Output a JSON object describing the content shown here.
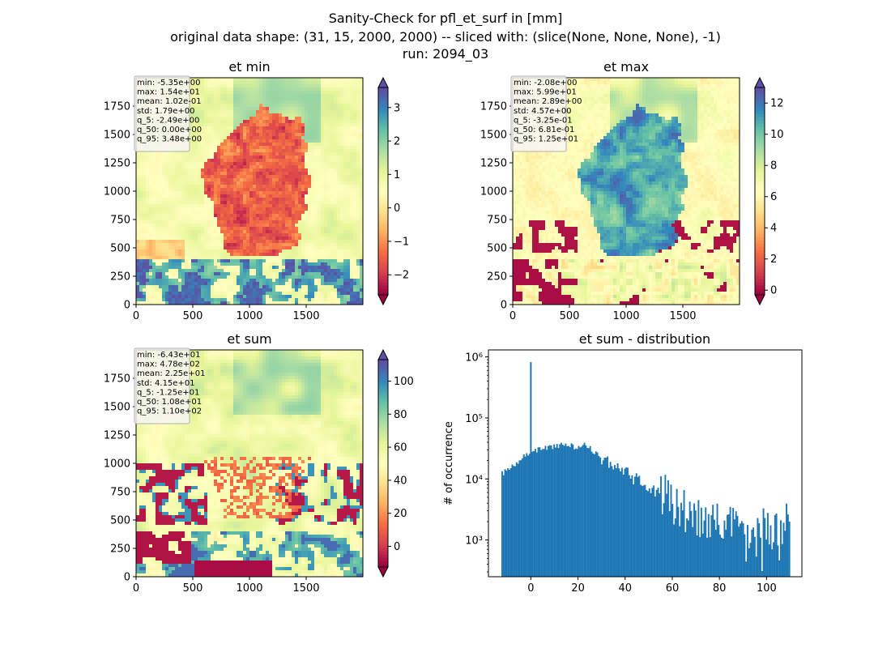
{
  "figure": {
    "title_lines": [
      "Sanity-Check for pfl_et_surf in [mm]",
      "original data shape: (31, 15, 2000, 2000) -- sliced with: (slice(None, None, None), -1)",
      "run: 2094_03"
    ]
  },
  "colormap": {
    "name": "Spectral",
    "stops": [
      "#9e0142",
      "#d53e4f",
      "#f46d43",
      "#fdae61",
      "#fee08b",
      "#ffffbf",
      "#e6f598",
      "#abdda4",
      "#66c2a5",
      "#3288bd",
      "#5e4fa2"
    ]
  },
  "chart_data": [
    {
      "type": "heatmap",
      "title": "et min",
      "xlim": [
        0,
        2000
      ],
      "ylim": [
        0,
        2000
      ],
      "xticks": [
        "0",
        "500",
        "1000",
        "1500"
      ],
      "yticks": [
        "0",
        "250",
        "500",
        "750",
        "1000",
        "1250",
        "1500",
        "1750"
      ],
      "colorbar": {
        "range": [
          -2.6,
          3.6
        ],
        "ticks": [
          "−2",
          "−1",
          "0",
          "1",
          "2",
          "3"
        ],
        "tick_values": [
          -2,
          -1,
          0,
          1,
          2,
          3
        ],
        "extend": "both"
      },
      "stats": [
        "min: -5.35e+00",
        "max: 1.54e+01",
        "mean: 1.02e-01",
        "std: 1.79e+00",
        "q_5: -2.49e+00",
        "q_50: 0.00e+00",
        "q_95: 3.48e+00"
      ]
    },
    {
      "type": "heatmap",
      "title": "et max",
      "xlim": [
        0,
        2000
      ],
      "ylim": [
        0,
        2000
      ],
      "xticks": [
        "0",
        "500",
        "1000",
        "1500"
      ],
      "yticks": [
        "0",
        "250",
        "500",
        "750",
        "1000",
        "1250",
        "1500",
        "1750"
      ],
      "colorbar": {
        "range": [
          -0.3,
          13
        ],
        "ticks": [
          "0",
          "2",
          "4",
          "6",
          "8",
          "10",
          "12"
        ],
        "tick_values": [
          0,
          2,
          4,
          6,
          8,
          10,
          12
        ],
        "extend": "both"
      },
      "stats": [
        "min: -2.08e+00",
        "max: 5.99e+01",
        "mean: 2.89e+00",
        "std: 4.57e+00",
        "q_5: -3.25e-01",
        "q_50: 6.81e-01",
        "q_95: 1.25e+01"
      ]
    },
    {
      "type": "heatmap",
      "title": "et sum",
      "xlim": [
        0,
        2000
      ],
      "ylim": [
        0,
        2000
      ],
      "xticks": [
        "0",
        "500",
        "1000",
        "1500"
      ],
      "yticks": [
        "0",
        "250",
        "500",
        "750",
        "1000",
        "1250",
        "1500",
        "1750"
      ],
      "colorbar": {
        "range": [
          -12.5,
          113
        ],
        "ticks": [
          "0",
          "20",
          "40",
          "60",
          "80",
          "100"
        ],
        "tick_values": [
          0,
          20,
          40,
          60,
          80,
          100
        ],
        "extend": "both"
      },
      "stats": [
        "min: -6.43e+01",
        "max: 4.78e+02",
        "mean: 2.25e+01",
        "std: 4.15e+01",
        "q_5: -1.25e+01",
        "q_50: 1.08e+01",
        "q_95: 1.10e+02"
      ]
    },
    {
      "type": "bar",
      "title": "et sum - distribution",
      "xlabel": "",
      "ylabel": "# of occurrence",
      "yscale": "log",
      "xlim": [
        -18,
        115
      ],
      "ylim": [
        250,
        1300000
      ],
      "xticks": [
        "0",
        "20",
        "40",
        "60",
        "80",
        "100"
      ],
      "xtick_values": [
        0,
        20,
        40,
        60,
        80,
        100
      ],
      "yticks": [
        "10³",
        "10⁴",
        "10⁵",
        "10⁶"
      ],
      "ytick_values": [
        1000,
        10000,
        100000,
        1000000
      ],
      "bin_range": [
        -12.5,
        110
      ],
      "bin_count": 200,
      "color": "#1f77b4",
      "spike": {
        "x": 0,
        "count": 820000
      },
      "histogram_profile": [
        {
          "x": -12.5,
          "count": 12000
        },
        {
          "x": -8,
          "count": 16000
        },
        {
          "x": -3,
          "count": 24000
        },
        {
          "x": 2,
          "count": 29000
        },
        {
          "x": 8,
          "count": 34000
        },
        {
          "x": 14,
          "count": 35000
        },
        {
          "x": 20,
          "count": 34000
        },
        {
          "x": 23,
          "count": 35000
        },
        {
          "x": 27,
          "count": 28000
        },
        {
          "x": 32,
          "count": 20000
        },
        {
          "x": 38,
          "count": 14000
        },
        {
          "x": 45,
          "count": 9500
        },
        {
          "x": 52,
          "count": 7000
        },
        {
          "x": 58,
          "count": 5000
        },
        {
          "x": 63,
          "count": 3200
        },
        {
          "x": 70,
          "count": 2400
        },
        {
          "x": 80,
          "count": 2000
        },
        {
          "x": 90,
          "count": 1700
        },
        {
          "x": 97,
          "count": 1500
        },
        {
          "x": 105,
          "count": 1600
        },
        {
          "x": 110,
          "count": 2800
        }
      ]
    }
  ]
}
